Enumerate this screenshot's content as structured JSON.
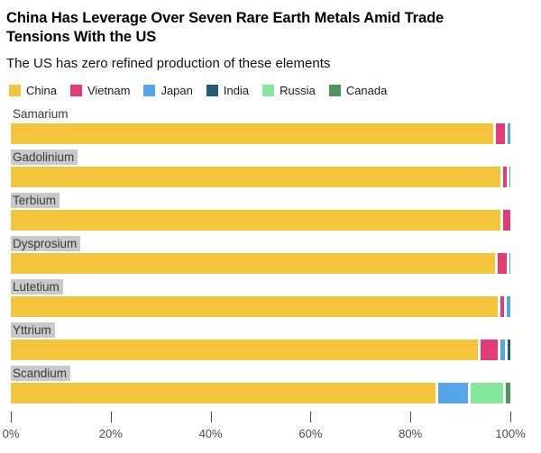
{
  "header": {
    "title": "China Has Leverage Over Seven Rare Earth Metals Amid Trade Tensions With the US",
    "subtitle": "The US has zero refined production of these elements"
  },
  "chart_data": {
    "type": "bar",
    "orientation": "horizontal-stacked",
    "title": "China Has Leverage Over Seven Rare Earth Metals Amid Trade Tensions With the US",
    "subtitle": "The US has zero refined production of these elements",
    "unit": "%",
    "categories": [
      "Samarium",
      "Gadolinium",
      "Terbium",
      "Dysprosium",
      "Lutetium",
      "Yttrium",
      "Scandium"
    ],
    "label_highlight": [
      false,
      true,
      true,
      true,
      true,
      true,
      true
    ],
    "series": [
      {
        "name": "China",
        "color": "#F2C53D",
        "values": [
          96.5,
          98.0,
          98.0,
          97.0,
          97.5,
          93.5,
          85.0
        ]
      },
      {
        "name": "Vietnam",
        "color": "#E23C78",
        "values": [
          2.5,
          1.3,
          2.0,
          2.2,
          1.3,
          4.0,
          0
        ]
      },
      {
        "name": "Japan",
        "color": "#55A5EA",
        "values": [
          1.0,
          0.7,
          0,
          0.8,
          1.2,
          1.5,
          6.5
        ]
      },
      {
        "name": "India",
        "color": "#235A75",
        "values": [
          0,
          0,
          0,
          0,
          0,
          1.0,
          0
        ]
      },
      {
        "name": "Russia",
        "color": "#85E79B",
        "values": [
          0,
          0,
          0,
          0,
          0,
          0,
          7.0
        ]
      },
      {
        "name": "Canada",
        "color": "#4E965C",
        "values": [
          0,
          0,
          0,
          0,
          0,
          0,
          1.5
        ]
      }
    ],
    "xlim": [
      0,
      100
    ],
    "x_ticks": [
      "0%",
      "20%",
      "40%",
      "60%",
      "80%",
      "100%"
    ],
    "legend_position": "top",
    "grid": false
  }
}
